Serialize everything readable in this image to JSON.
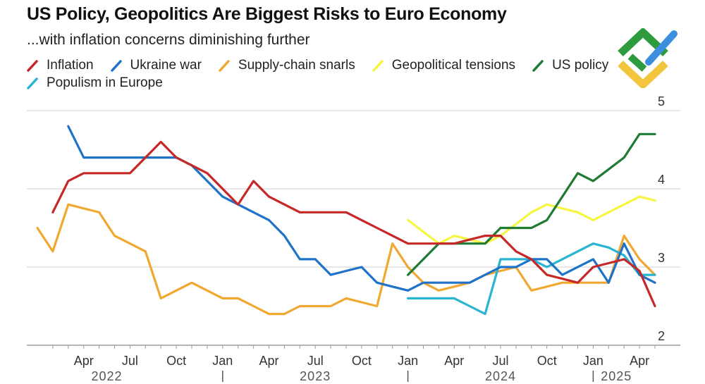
{
  "chart_data": {
    "type": "line",
    "title": "US Policy, Geopolitics Are Biggest Risks to Euro Economy",
    "subtitle": "...with inflation concerns diminishing further",
    "xlabel": "",
    "ylabel": "",
    "ylim": [
      2,
      5
    ],
    "yticks": [
      2,
      3,
      4,
      5
    ],
    "grid": true,
    "legend_position": "top-left",
    "x_tick_labels": [
      "Apr",
      "Jul",
      "Oct",
      "Jan",
      "Apr",
      "Jul",
      "Oct",
      "Jan",
      "Apr",
      "Jul",
      "Oct",
      "Jan",
      "Apr"
    ],
    "x_tick_months": [
      3,
      6,
      9,
      12,
      15,
      18,
      21,
      24,
      27,
      30,
      33,
      36,
      39
    ],
    "year_labels": [
      "2022",
      "2023",
      "2024",
      "2025"
    ],
    "year_label_months": [
      4.5,
      18,
      30,
      37.5
    ],
    "year_separator_months": [
      12,
      24,
      36
    ],
    "series": [
      {
        "name": "Inflation",
        "color": "#c62828",
        "x": [
          1,
          2,
          3,
          4,
          5,
          6,
          7,
          8,
          9,
          10,
          11,
          12,
          13,
          14,
          15,
          16,
          17,
          18,
          19,
          20,
          21,
          22,
          23,
          24,
          25,
          26,
          27,
          28,
          29,
          30,
          31,
          32,
          33,
          34,
          35,
          36,
          37,
          38,
          39,
          40
        ],
        "values": [
          3.7,
          4.1,
          4.2,
          4.2,
          4.2,
          4.2,
          4.4,
          4.6,
          4.4,
          4.3,
          4.2,
          4.0,
          3.8,
          4.1,
          3.9,
          3.8,
          3.7,
          3.7,
          3.7,
          3.7,
          3.6,
          3.5,
          3.4,
          3.3,
          3.3,
          3.3,
          3.3,
          3.35,
          3.4,
          3.4,
          3.2,
          3.1,
          2.9,
          2.85,
          2.8,
          3.0,
          3.05,
          3.1,
          2.95,
          2.5
        ]
      },
      {
        "name": "Ukraine war",
        "color": "#1e73c8",
        "x": [
          2,
          3,
          4,
          5,
          6,
          7,
          8,
          9,
          10,
          11,
          12,
          13,
          14,
          15,
          16,
          17,
          18,
          19,
          20,
          21,
          22,
          23,
          24,
          25,
          26,
          27,
          28,
          29,
          30,
          31,
          32,
          33,
          34,
          35,
          36,
          37,
          38,
          39,
          40
        ],
        "values": [
          4.8,
          4.4,
          4.4,
          4.4,
          4.4,
          4.4,
          4.4,
          4.4,
          4.3,
          4.1,
          3.9,
          3.8,
          3.7,
          3.6,
          3.4,
          3.1,
          3.1,
          2.9,
          2.95,
          3.0,
          2.8,
          2.75,
          2.7,
          2.8,
          2.8,
          2.8,
          2.8,
          2.9,
          3.0,
          3.0,
          3.1,
          3.1,
          2.9,
          3.0,
          3.1,
          2.8,
          3.3,
          2.9,
          2.8
        ]
      },
      {
        "name": "Supply-chain snarls",
        "color": "#f0a830",
        "x": [
          0,
          1,
          2,
          3,
          4,
          5,
          6,
          7,
          8,
          9,
          10,
          11,
          12,
          13,
          14,
          15,
          16,
          17,
          18,
          19,
          20,
          21,
          22,
          23,
          24,
          25,
          26,
          27,
          28,
          29,
          30,
          31,
          32,
          33,
          34,
          35,
          36,
          37,
          38,
          39,
          40
        ],
        "values": [
          3.5,
          3.2,
          3.8,
          3.75,
          3.7,
          3.4,
          3.3,
          3.2,
          2.6,
          2.7,
          2.8,
          2.7,
          2.6,
          2.6,
          2.5,
          2.4,
          2.4,
          2.5,
          2.5,
          2.5,
          2.6,
          2.55,
          2.5,
          3.3,
          3.0,
          2.8,
          2.7,
          2.75,
          2.8,
          2.9,
          2.95,
          3.0,
          2.7,
          2.75,
          2.8,
          2.8,
          2.8,
          2.8,
          3.4,
          3.1,
          2.9
        ]
      },
      {
        "name": "Geopolitical tensions",
        "color": "#f5f542",
        "x": [
          24,
          25,
          26,
          27,
          28,
          29,
          30,
          31,
          32,
          33,
          34,
          35,
          36,
          37,
          38,
          39,
          40
        ],
        "values": [
          3.6,
          3.45,
          3.3,
          3.4,
          3.35,
          3.3,
          3.4,
          3.55,
          3.7,
          3.8,
          3.75,
          3.7,
          3.6,
          3.7,
          3.8,
          3.9,
          3.85
        ]
      },
      {
        "name": "US policy",
        "color": "#1f7a34",
        "x": [
          24,
          25,
          26,
          27,
          28,
          29,
          30,
          31,
          32,
          33,
          34,
          35,
          36,
          37,
          38,
          39,
          40
        ],
        "values": [
          2.9,
          3.1,
          3.3,
          3.3,
          3.3,
          3.3,
          3.5,
          3.5,
          3.5,
          3.6,
          3.9,
          4.2,
          4.1,
          4.25,
          4.4,
          4.7,
          4.7
        ]
      },
      {
        "name": "Populism in Europe",
        "color": "#2ab4d2",
        "x": [
          24,
          25,
          26,
          27,
          28,
          29,
          30,
          31,
          32,
          33,
          34,
          35,
          36,
          37,
          38,
          39,
          40
        ],
        "values": [
          2.6,
          2.6,
          2.6,
          2.6,
          2.5,
          2.4,
          3.1,
          3.1,
          3.1,
          3.0,
          3.1,
          3.2,
          3.3,
          3.25,
          3.15,
          2.9,
          2.9
        ]
      }
    ]
  }
}
